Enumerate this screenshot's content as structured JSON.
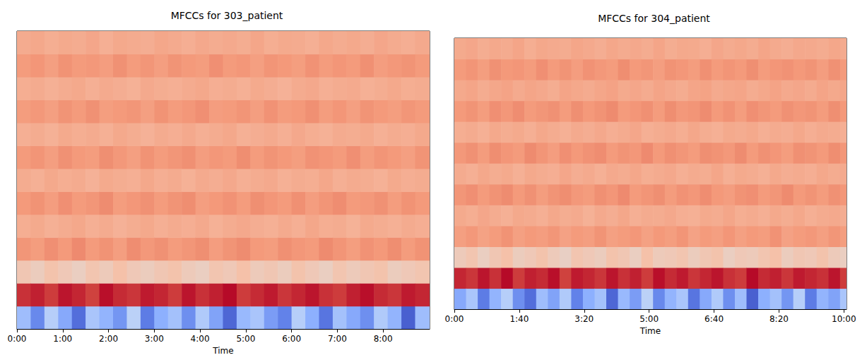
{
  "chart_data": [
    {
      "type": "heatmap",
      "title": "MFCCs for 303_patient",
      "xlabel": "Time",
      "tick_labels": "x",
      "xlim": [
        0,
        541
      ],
      "xticks": [
        {
          "value": 0,
          "label": "0:00"
        },
        {
          "value": 60,
          "label": "1:00"
        },
        {
          "value": 120,
          "label": "2:00"
        },
        {
          "value": 180,
          "label": "3:00"
        },
        {
          "value": 240,
          "label": "4:00"
        },
        {
          "value": 300,
          "label": "5:00"
        },
        {
          "value": 360,
          "label": "6:00"
        },
        {
          "value": 420,
          "label": "7:00"
        },
        {
          "value": 480,
          "label": "8:00"
        }
      ],
      "color_range": [
        -400,
        200
      ],
      "x": [
        0,
        18,
        36,
        54,
        72,
        90,
        108,
        126,
        144,
        162,
        180,
        198,
        216,
        234,
        252,
        270,
        288,
        306,
        324,
        342,
        360,
        378,
        396,
        414,
        432,
        450,
        468,
        486,
        504,
        522
      ],
      "cells": [
        [
          -220,
          -310,
          -180,
          -260,
          -350,
          -200,
          -240,
          -290,
          -170,
          -330,
          -250,
          -210,
          -300,
          -190,
          -270,
          -360,
          -230,
          -200,
          -280,
          -320,
          -180,
          -250,
          -340,
          -210,
          -260,
          -300,
          -190,
          -240,
          -370,
          -220
        ],
        [
          160,
          175,
          150,
          185,
          170,
          145,
          190,
          165,
          155,
          180,
          170,
          150,
          185,
          160,
          175,
          195,
          150,
          165,
          180,
          155,
          170,
          185,
          160,
          150,
          175,
          190,
          165,
          155,
          180,
          170
        ],
        [
          -40,
          -55,
          -30,
          -45,
          -60,
          -35,
          -50,
          -25,
          -45,
          -55,
          -40,
          -30,
          -50,
          -60,
          -35,
          -45,
          -25,
          -50,
          -40,
          -55,
          -30,
          -45,
          -60,
          -35,
          -50,
          -40,
          -30,
          -55,
          -45,
          -35
        ],
        [
          55,
          45,
          62,
          50,
          68,
          48,
          58,
          42,
          65,
          52,
          60,
          47,
          55,
          63,
          44,
          57,
          66,
          50,
          45,
          61,
          53,
          48,
          67,
          56,
          43,
          59,
          51,
          64,
          46,
          58
        ],
        [
          12,
          20,
          8,
          16,
          24,
          10,
          18,
          5,
          14,
          22,
          9,
          17,
          11,
          21,
          6,
          15,
          23,
          13,
          7,
          19,
          10,
          25,
          12,
          16,
          4,
          20,
          14,
          8,
          18,
          11
        ],
        [
          50,
          58,
          44,
          62,
          48,
          55,
          66,
          45,
          53,
          60,
          47,
          57,
          64,
          42,
          51,
          59,
          46,
          63,
          54,
          49,
          61,
          44,
          56,
          65,
          48,
          52,
          60,
          45,
          58,
          50
        ],
        [
          15,
          8,
          22,
          12,
          18,
          5,
          20,
          14,
          9,
          24,
          11,
          17,
          6,
          19,
          13,
          23,
          10,
          16,
          21,
          7,
          15,
          12,
          25,
          9,
          18,
          14,
          6,
          20,
          11,
          16
        ],
        [
          48,
          56,
          42,
          60,
          50,
          45,
          63,
          52,
          40,
          58,
          47,
          55,
          61,
          44,
          53,
          49,
          64,
          46,
          57,
          51,
          43,
          59,
          54,
          48,
          62,
          45,
          56,
          50,
          41,
          57
        ],
        [
          10,
          16,
          6,
          20,
          12,
          18,
          8,
          22,
          14,
          5,
          17,
          11,
          21,
          9,
          15,
          24,
          7,
          13,
          19,
          10,
          23,
          12,
          6,
          18,
          14,
          20,
          8,
          16,
          11,
          22
        ],
        [
          45,
          52,
          40,
          57,
          48,
          60,
          43,
          50,
          55,
          41,
          58,
          46,
          53,
          62,
          44,
          49,
          56,
          42,
          59,
          47,
          51,
          61,
          45,
          54,
          40,
          57,
          50,
          43,
          55,
          48
        ],
        [
          12,
          18,
          7,
          15,
          22,
          10,
          19,
          13,
          6,
          21,
          14,
          9,
          17,
          24,
          11,
          16,
          8,
          20,
          13,
          5,
          18,
          23,
          10,
          15,
          19,
          7,
          14,
          22,
          12,
          16
        ],
        [
          46,
          54,
          41,
          58,
          49,
          52,
          44,
          60,
          47,
          55,
          42,
          57,
          50,
          45,
          62,
          48,
          53,
          40,
          56,
          51,
          43,
          59,
          46,
          54,
          48,
          61,
          44,
          52,
          57,
          49
        ],
        [
          18,
          24,
          12,
          20,
          15,
          26,
          10,
          22,
          17,
          13,
          25,
          19,
          11,
          23,
          16,
          21,
          14,
          27,
          12,
          20,
          18,
          9,
          24,
          15,
          22,
          13,
          26,
          17,
          11,
          21
        ]
      ]
    },
    {
      "type": "heatmap",
      "title": "MFCCs for 304_patient",
      "xlabel": "Time",
      "tick_labels": "x",
      "xlim": [
        0,
        604
      ],
      "xticks": [
        {
          "value": 0,
          "label": "0:00"
        },
        {
          "value": 100,
          "label": "1:40"
        },
        {
          "value": 200,
          "label": "3:20"
        },
        {
          "value": 300,
          "label": "5:00"
        },
        {
          "value": 400,
          "label": "6:40"
        },
        {
          "value": 500,
          "label": "8:20"
        },
        {
          "value": 600,
          "label": "10:00"
        }
      ],
      "color_range": [
        -400,
        200
      ],
      "x": [
        0,
        18,
        36,
        54,
        72,
        90,
        108,
        126,
        144,
        162,
        180,
        198,
        216,
        234,
        252,
        270,
        288,
        306,
        324,
        342,
        360,
        378,
        396,
        414,
        432,
        450,
        468,
        486,
        504,
        522,
        540,
        558,
        576,
        594
      ],
      "cells": [
        [
          -260,
          -200,
          -330,
          -240,
          -180,
          -300,
          -350,
          -220,
          -270,
          -190,
          -320,
          -250,
          -210,
          -360,
          -230,
          -280,
          -170,
          -310,
          -240,
          -200,
          -340,
          -260,
          -190,
          -300,
          -220,
          -370,
          -250,
          -210,
          -290,
          -180,
          -330,
          -240,
          -270,
          -200
        ],
        [
          170,
          155,
          185,
          160,
          195,
          150,
          175,
          165,
          190,
          145,
          180,
          170,
          155,
          185,
          160,
          175,
          150,
          190,
          165,
          180,
          155,
          170,
          185,
          160,
          150,
          195,
          165,
          175,
          155,
          180,
          170,
          160,
          185,
          150
        ],
        [
          -50,
          -35,
          -60,
          -40,
          -25,
          -55,
          -45,
          -30,
          -50,
          -65,
          -35,
          -45,
          -55,
          -30,
          -40,
          -60,
          -25,
          -50,
          -45,
          -35,
          -55,
          -40,
          -30,
          -60,
          -45,
          -50,
          -35,
          -25,
          -55,
          -40,
          -45,
          -30,
          -50,
          -60
        ],
        [
          40,
          52,
          35,
          47,
          58,
          38,
          50,
          44,
          55,
          36,
          49,
          42,
          57,
          39,
          46,
          53,
          37,
          51,
          43,
          56,
          34,
          48,
          41,
          54,
          38,
          50,
          45,
          59,
          36,
          47,
          52,
          40,
          55,
          43
        ],
        [
          20,
          12,
          26,
          15,
          8,
          22,
          17,
          10,
          24,
          14,
          19,
          6,
          21,
          13,
          25,
          9,
          18,
          16,
          23,
          11,
          7,
          20,
          15,
          27,
          12,
          18,
          9,
          22,
          14,
          24,
          10,
          17,
          21,
          13
        ],
        [
          55,
          62,
          48,
          58,
          66,
          50,
          60,
          45,
          57,
          64,
          52,
          47,
          61,
          54,
          68,
          49,
          56,
          63,
          46,
          59,
          53,
          65,
          51,
          44,
          58,
          62,
          48,
          55,
          67,
          50,
          57,
          46,
          60,
          53
        ],
        [
          18,
          10,
          24,
          14,
          20,
          7,
          22,
          16,
          11,
          26,
          13,
          19,
          8,
          21,
          15,
          25,
          12,
          17,
          23,
          9,
          18,
          14,
          27,
          10,
          20,
          16,
          8,
          22,
          13,
          18,
          11,
          24,
          15,
          19
        ],
        [
          52,
          60,
          46,
          64,
          54,
          49,
          67,
          56,
          44,
          62,
          51,
          59,
          65,
          48,
          57,
          53,
          68,
          50,
          61,
          55,
          47,
          63,
          58,
          52,
          66,
          49,
          60,
          54,
          45,
          61,
          57,
          50,
          64,
          53
        ],
        [
          12,
          18,
          8,
          22,
          14,
          20,
          10,
          24,
          16,
          7,
          19,
          13,
          23,
          11,
          17,
          26,
          9,
          15,
          21,
          12,
          25,
          14,
          8,
          20,
          16,
          22,
          10,
          18,
          13,
          24,
          11,
          19,
          15,
          9
        ],
        [
          50,
          57,
          45,
          62,
          53,
          65,
          48,
          55,
          60,
          46,
          63,
          51,
          58,
          67,
          49,
          54,
          61,
          47,
          64,
          52,
          56,
          66,
          50,
          59,
          45,
          62,
          55,
          48,
          60,
          53,
          57,
          47,
          63,
          51
        ],
        [
          22,
          28,
          16,
          25,
          32,
          19,
          29,
          23,
          14,
          31,
          24,
          18,
          27,
          34,
          20,
          26,
          17,
          30,
          23,
          15,
          28,
          33,
          19,
          25,
          29,
          16,
          24,
          32,
          21,
          26,
          18,
          30,
          22,
          27
        ],
        [
          48,
          56,
          43,
          60,
          51,
          54,
          46,
          62,
          49,
          57,
          44,
          59,
          52,
          47,
          64,
          50,
          55,
          42,
          58,
          53,
          45,
          61,
          48,
          56,
          50,
          63,
          46,
          54,
          59,
          51,
          57,
          44,
          60,
          49
        ],
        [
          20,
          26,
          14,
          22,
          17,
          28,
          12,
          24,
          19,
          15,
          27,
          21,
          13,
          25,
          18,
          23,
          16,
          29,
          14,
          22,
          20,
          11,
          26,
          17,
          24,
          15,
          28,
          19,
          13,
          23,
          21,
          16,
          25,
          18
        ]
      ]
    }
  ]
}
